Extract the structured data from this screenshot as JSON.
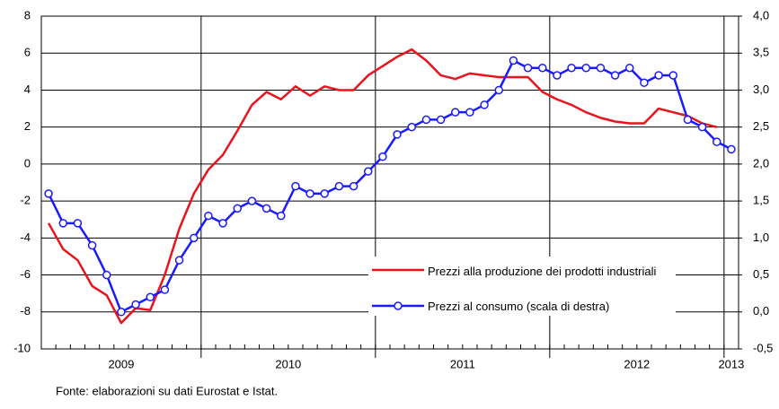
{
  "chart_data": {
    "type": "line",
    "categories": [
      null,
      null,
      null,
      null,
      null,
      null,
      null,
      null,
      null,
      null,
      null,
      null,
      null,
      null,
      null,
      null,
      null,
      null,
      null,
      null,
      null,
      null,
      null,
      null,
      null,
      null,
      null,
      null,
      null,
      null,
      null,
      null,
      null,
      null,
      null,
      null,
      null,
      null,
      null,
      null,
      null,
      null,
      null,
      null,
      null,
      null,
      null,
      null
    ],
    "year_groups": [
      {
        "label": "2009",
        "months": 11
      },
      {
        "label": "2010",
        "months": 12
      },
      {
        "label": "2011",
        "months": 12
      },
      {
        "label": "2012",
        "months": 12
      },
      {
        "label": "2013",
        "months": 1
      }
    ],
    "series": [
      {
        "name": "Prezzi alla produzione dei prodotti industriali",
        "color": "#e8141c",
        "values": [
          -3.2,
          -4.6,
          -5.2,
          -6.6,
          -7.1,
          -8.6,
          -7.8,
          -7.9,
          -6.0,
          -3.5,
          -1.6,
          -0.3,
          0.5,
          1.8,
          3.2,
          3.9,
          3.5,
          4.2,
          3.7,
          4.2,
          4.0,
          4.0,
          4.8,
          5.3,
          5.8,
          6.2,
          5.6,
          4.8,
          4.6,
          4.9,
          4.8,
          4.7,
          4.7,
          4.7,
          3.9,
          3.5,
          3.2,
          2.8,
          2.5,
          2.3,
          2.2,
          2.2,
          3.0,
          2.8,
          2.6,
          2.2,
          2.0,
          null
        ]
      },
      {
        "name": "Prezzi al consumo (scala di destra)",
        "color": "#1a1aff",
        "axis": "y2",
        "values": [
          1.6,
          1.2,
          1.2,
          0.9,
          0.5,
          0.0,
          0.1,
          0.2,
          0.3,
          0.7,
          1.0,
          1.3,
          1.2,
          1.4,
          1.5,
          1.4,
          1.3,
          1.7,
          1.6,
          1.6,
          1.7,
          1.7,
          1.9,
          2.1,
          2.4,
          2.5,
          2.6,
          2.6,
          2.7,
          2.7,
          2.8,
          3.0,
          3.4,
          3.3,
          3.3,
          3.2,
          3.3,
          3.3,
          3.3,
          3.2,
          3.3,
          3.1,
          3.2,
          3.2,
          2.6,
          2.5,
          2.3,
          2.2
        ]
      }
    ],
    "ylim": [
      -10,
      8
    ],
    "yticks": [
      -10,
      -8,
      -6,
      -4,
      -2,
      0,
      2,
      4,
      6,
      8
    ],
    "y2lim": [
      -0.5,
      4.0
    ],
    "y2ticks": [
      {
        "value": -0.5,
        "label": "-0,5"
      },
      {
        "value": 0.0,
        "label": "0,0"
      },
      {
        "value": 0.5,
        "label": "0,5"
      },
      {
        "value": 1.0,
        "label": "1,0"
      },
      {
        "value": 1.5,
        "label": "1,5"
      },
      {
        "value": 2.0,
        "label": "2,0"
      },
      {
        "value": 2.5,
        "label": "2,5"
      },
      {
        "value": 3.0,
        "label": "3,0"
      },
      {
        "value": 3.5,
        "label": "3,5"
      },
      {
        "value": 4.0,
        "label": "4,0"
      }
    ],
    "grid": true,
    "source": "Fonte: elaborazioni su dati Eurostat e Istat."
  }
}
